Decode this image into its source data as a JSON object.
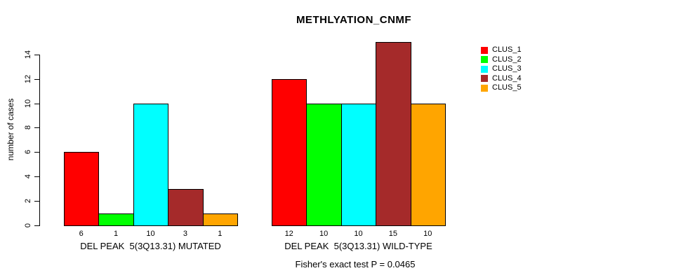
{
  "chart_data": {
    "type": "bar",
    "title": "METHLYATION_CNMF",
    "ylabel": "number of cases",
    "xlabel": "",
    "ylim": [
      0,
      15.4
    ],
    "yticks": [
      0,
      2,
      4,
      6,
      8,
      10,
      12,
      14
    ],
    "grid": false,
    "legend_position": "right-outside",
    "series_names": [
      "CLUS_1",
      "CLUS_2",
      "CLUS_3",
      "CLUS_4",
      "CLUS_5"
    ],
    "series_colors": [
      "#FF0000",
      "#00FF00",
      "#00FFFF",
      "#A52A2A",
      "#FFA500"
    ],
    "groups": [
      {
        "label": "DEL PEAK  5(3Q13.31) MUTATED",
        "values": [
          6,
          1,
          10,
          3,
          1
        ],
        "value_labels": [
          "6",
          "1",
          "10",
          "3",
          "1"
        ]
      },
      {
        "label": "DEL PEAK  5(3Q13.31) WILD-TYPE",
        "values": [
          12,
          10,
          10,
          15,
          10
        ],
        "value_labels": [
          "12",
          "10",
          "10",
          "15",
          "10"
        ]
      }
    ],
    "annotation": "Fisher's exact test P = 0.0465"
  }
}
